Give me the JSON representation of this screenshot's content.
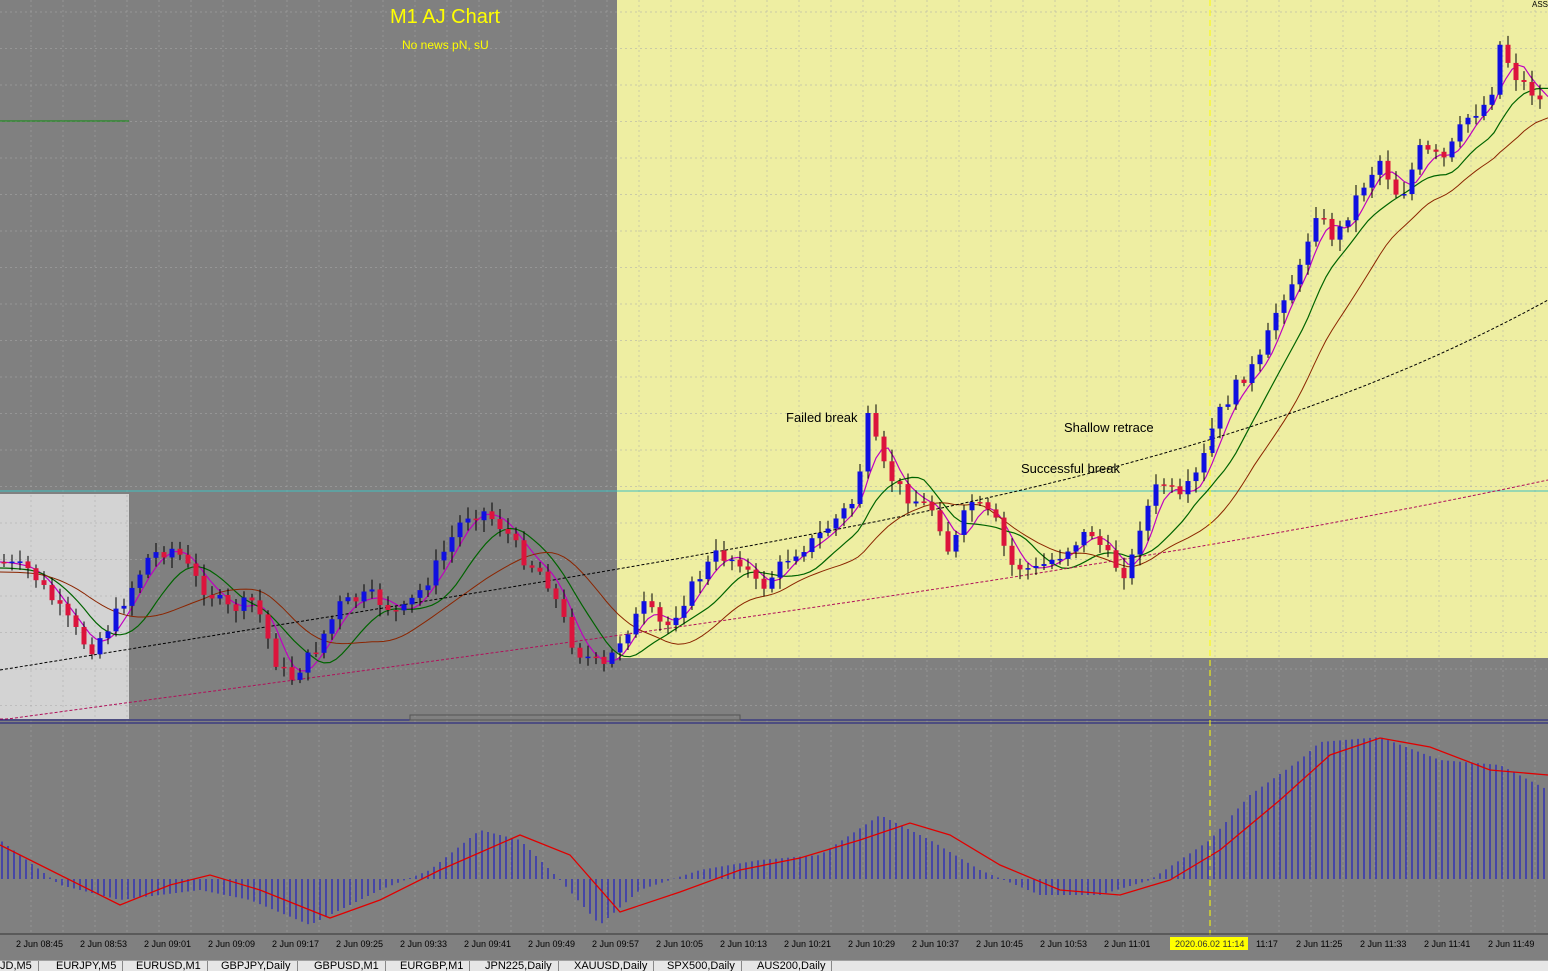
{
  "chart": {
    "title": "M1 AJ Chart",
    "subtitle": "No news pN, sU",
    "corner_label": "ASS",
    "colors": {
      "background": "#808080",
      "session_highlight": "#eeeea2",
      "pre_session_box": "#d3d3d3",
      "bull_candle": "#1010e0",
      "bear_candle": "#dc143c",
      "ma_fast": "#c000c0",
      "ma_mid": "#006400",
      "ma_slow": "#8b2500",
      "level_line": "#40c0c0",
      "histogram": "#2020c0",
      "signal_line": "#e00000",
      "cursor_line": "#ffff00"
    },
    "annotations": [
      {
        "label": "Failed break"
      },
      {
        "label": "Shallow retrace"
      },
      {
        "label": "Successful break"
      }
    ],
    "cursor_time_label": "2020.06.02 11:14",
    "time_labels": [
      "2 Jun 08:45",
      "2 Jun 08:53",
      "2 Jun 09:01",
      "2 Jun 09:09",
      "2 Jun 09:17",
      "2 Jun 09:25",
      "2 Jun 09:33",
      "2 Jun 09:41",
      "2 Jun 09:49",
      "2 Jun 09:57",
      "2 Jun 10:05",
      "2 Jun 10:13",
      "2 Jun 10:21",
      "2 Jun 10:29",
      "2 Jun 10:37",
      "2 Jun 10:45",
      "2 Jun 10:53",
      "2 Jun 11:01",
      "",
      "11:17",
      "2 Jun 11:25",
      "2 Jun 11:33",
      "2 Jun 11:41",
      "2 Jun 11:49"
    ]
  },
  "tabs": [
    "JD,M5",
    "EURJPY,M5",
    "EURUSD,M1",
    "GBPJPY,Daily",
    "GBPUSD,M1",
    "EURGBP,M1",
    "JPN225,Daily",
    "XAUUSD,Daily",
    "SPX500,Daily",
    "AUS200,Daily"
  ]
}
